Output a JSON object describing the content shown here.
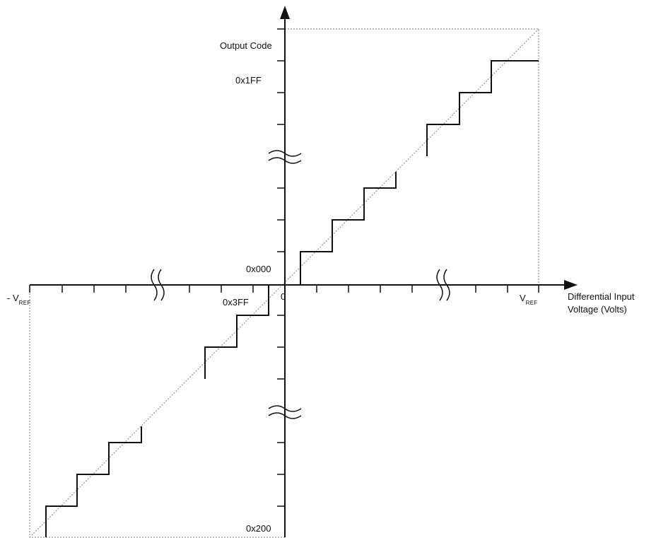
{
  "labels": {
    "y_axis_title": "Output Code",
    "code_max": "0x1FF",
    "code_zero": "0x000",
    "code_neg_one": "0x3FF",
    "code_min": "0x200",
    "origin": "0",
    "neg_vref_prefix": "- V",
    "neg_vref_sub": "REF",
    "pos_vref_prefix": "V",
    "pos_vref_sub": "REF",
    "x_axis_title_line1": "Differential Input",
    "x_axis_title_line2": "Voltage (Volts)"
  },
  "colors": {
    "line": "#111111",
    "ideal": "#999999",
    "background": "#ffffff"
  }
}
